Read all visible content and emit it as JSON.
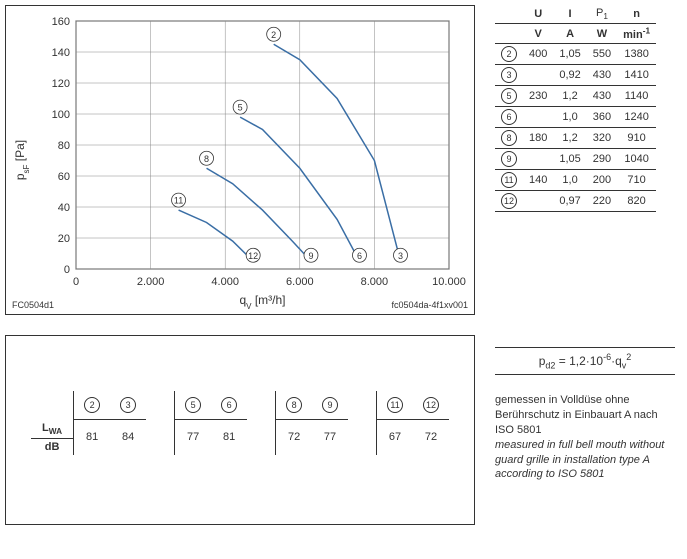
{
  "chart": {
    "type": "line",
    "title_left": "FC0504d1",
    "title_right": "fc0504da-4f1xv001",
    "ylabel": "p",
    "ylabel_sub": "sF",
    "ylabel_unit": " [Pa]",
    "xlabel": "q",
    "xlabel_sub": "V",
    "xlabel_unit": " [m³/h]",
    "ylim": [
      0,
      160
    ],
    "ytick_step": 20,
    "xlim": [
      0,
      10000
    ],
    "xtick_step": 2000,
    "xtick_labels": [
      "0",
      "2.000",
      "4.000",
      "6.000",
      "8.000",
      "10.000"
    ],
    "background_color": "#ffffff",
    "grid_color": "#888888",
    "axis_color": "#333333",
    "line_color": "#3a6ea5",
    "line_width": 1.5,
    "font_size_axis": 11,
    "curves": [
      {
        "label": "2",
        "points": [
          [
            5300,
            145
          ],
          [
            6000,
            135
          ],
          [
            7000,
            110
          ],
          [
            8000,
            70
          ],
          [
            8700,
            5
          ]
        ]
      },
      {
        "label": "5",
        "points": [
          [
            4400,
            98
          ],
          [
            5000,
            90
          ],
          [
            6000,
            65
          ],
          [
            7000,
            32
          ],
          [
            7600,
            5
          ]
        ]
      },
      {
        "label": "8",
        "points": [
          [
            3500,
            65
          ],
          [
            4200,
            55
          ],
          [
            5000,
            38
          ],
          [
            5800,
            18
          ],
          [
            6300,
            5
          ]
        ]
      },
      {
        "label": "11",
        "points": [
          [
            2750,
            38
          ],
          [
            3500,
            30
          ],
          [
            4200,
            18
          ],
          [
            4750,
            5
          ]
        ]
      }
    ],
    "end_markers": [
      {
        "label": "12",
        "x": 4750,
        "y": 5
      },
      {
        "label": "9",
        "x": 6300,
        "y": 5
      },
      {
        "label": "6",
        "x": 7600,
        "y": 5
      },
      {
        "label": "3",
        "x": 8700,
        "y": 5
      }
    ]
  },
  "spec_table": {
    "headers1": [
      "U",
      "I",
      "P",
      "n"
    ],
    "headers1_sub": [
      "",
      "",
      "1",
      ""
    ],
    "headers2": [
      "V",
      "A",
      "W",
      "min"
    ],
    "headers2_sup": [
      "",
      "",
      "",
      "-1"
    ],
    "rows": [
      {
        "label": "2",
        "U": "400",
        "I": "1,05",
        "P": "550",
        "n": "1380"
      },
      {
        "label": "3",
        "U": "",
        "I": "0,92",
        "P": "430",
        "n": "1410"
      },
      {
        "label": "5",
        "U": "230",
        "I": "1,2",
        "P": "430",
        "n": "1140"
      },
      {
        "label": "6",
        "U": "",
        "I": "1,0",
        "P": "360",
        "n": "1240"
      },
      {
        "label": "8",
        "U": "180",
        "I": "1,2",
        "P": "320",
        "n": "910"
      },
      {
        "label": "9",
        "U": "",
        "I": "1,05",
        "P": "290",
        "n": "1040"
      },
      {
        "label": "11",
        "U": "140",
        "I": "1,0",
        "P": "200",
        "n": "710"
      },
      {
        "label": "12",
        "U": "",
        "I": "0,97",
        "P": "220",
        "n": "820"
      }
    ]
  },
  "formula": "p<sub>d2</sub> = 1,2·10<sup>-6</sup>·q<sub>v</sub><sup>2</sup>",
  "notes": {
    "line1": "gemessen in Volldüse ohne Berührschutz in Einbauart A nach ISO 5801",
    "line2": "measured in full bell mouth without guard grille in installation type A according to ISO 5801"
  },
  "sound_table": {
    "row_label_1": "L",
    "row_label_1_sub": "WA",
    "row_label_2": "dB",
    "groups": [
      {
        "circles": [
          "2",
          "3"
        ],
        "values": [
          "81",
          "84"
        ]
      },
      {
        "circles": [
          "5",
          "6"
        ],
        "values": [
          "77",
          "81"
        ]
      },
      {
        "circles": [
          "8",
          "9"
        ],
        "values": [
          "72",
          "77"
        ]
      },
      {
        "circles": [
          "11",
          "12"
        ],
        "values": [
          "67",
          "72"
        ]
      }
    ]
  }
}
